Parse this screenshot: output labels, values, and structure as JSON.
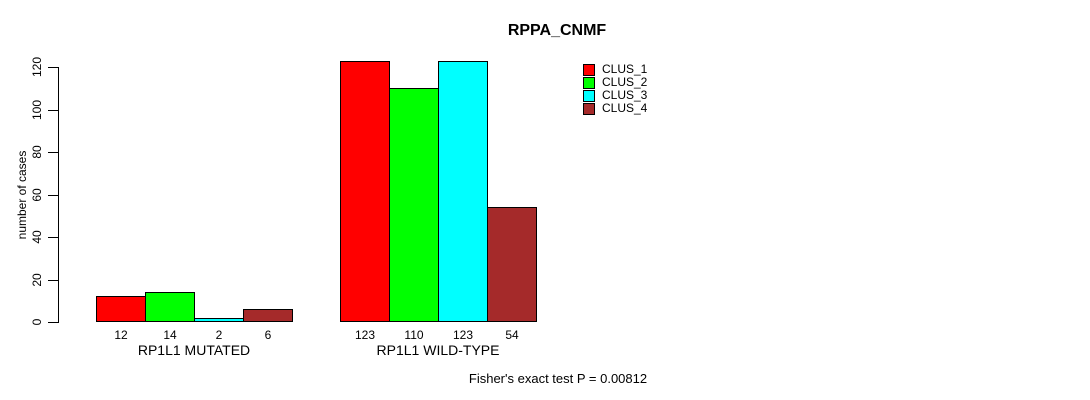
{
  "chart_data": {
    "type": "bar",
    "title": "RPPA_CNMF",
    "ylabel": "number of cases",
    "xlabel": "",
    "footnote": "Fisher's exact test P = 0.00812",
    "ylim": [
      0,
      120
    ],
    "yticks": [
      0,
      20,
      40,
      60,
      80,
      100,
      120
    ],
    "grid": false,
    "legend_position": "right-inside-top",
    "bar_value_labels_shown": true,
    "categories": [
      "RP1L1 MUTATED",
      "RP1L1 WILD-TYPE"
    ],
    "series": [
      {
        "name": "CLUS_1",
        "color": "#FF0000",
        "values": [
          12,
          123
        ]
      },
      {
        "name": "CLUS_2",
        "color": "#00FF00",
        "values": [
          14,
          110
        ]
      },
      {
        "name": "CLUS_3",
        "color": "#00FFFF",
        "values": [
          2,
          123
        ]
      },
      {
        "name": "CLUS_4",
        "color": "#A52A2A",
        "values": [
          6,
          54
        ]
      }
    ]
  }
}
